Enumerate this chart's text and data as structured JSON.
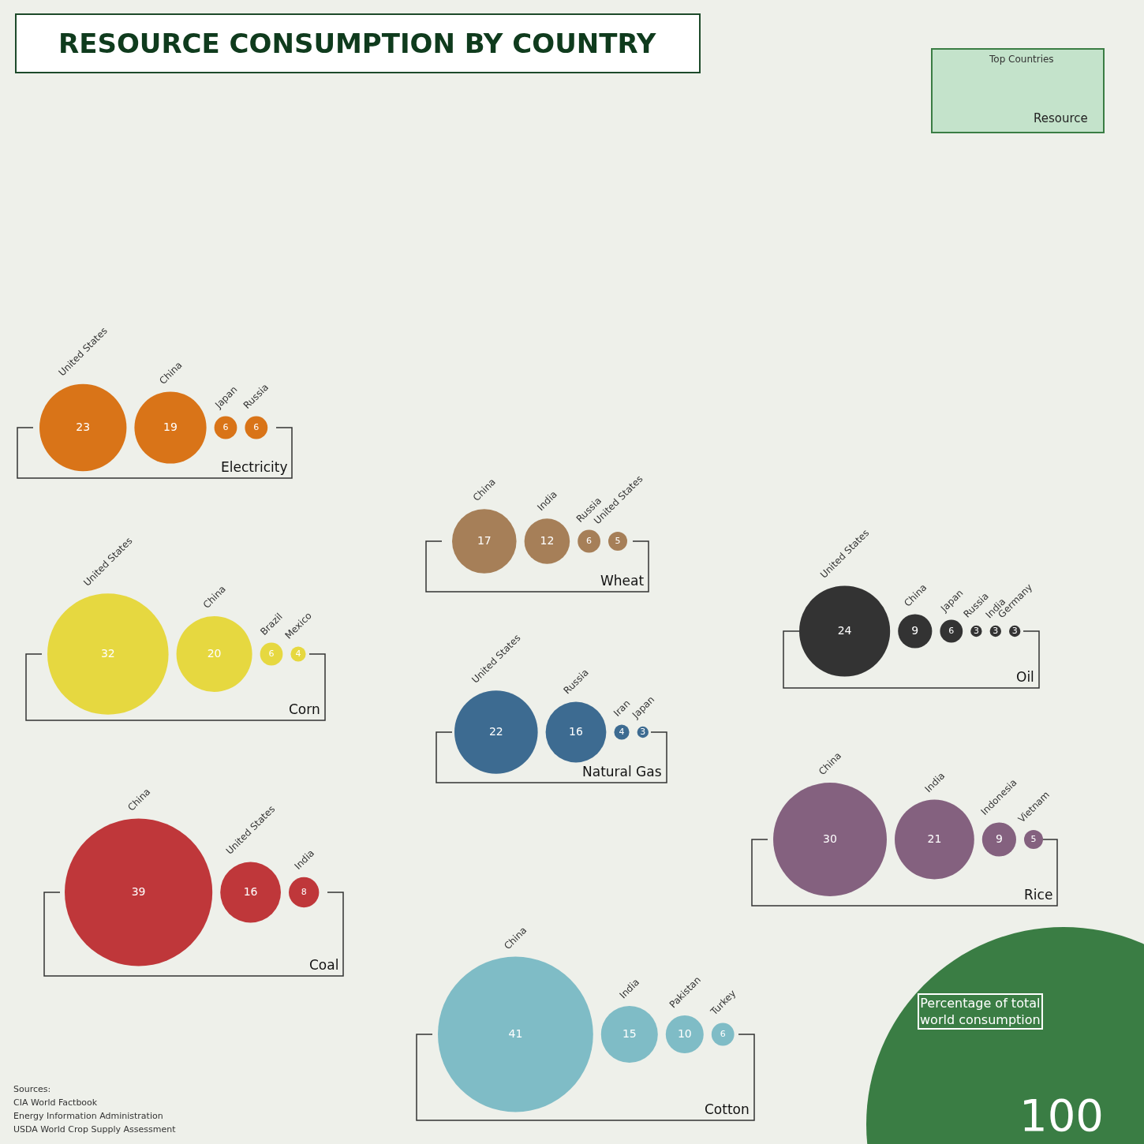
{
  "chart_data": [
    {
      "type": "other",
      "title": "RESOURCE CONSUMPTION BY COUNTRY",
      "annotations": [
        "Top Countries",
        "Resource",
        "Percentage of total world consumption",
        "100",
        "Sources:",
        "CIA World Factbook",
        "Energy Information Administration",
        "USDA World Crop Supply Assessment"
      ]
    },
    {
      "type": "other",
      "title": "Electricity",
      "categories": [
        "United States",
        "China",
        "Japan",
        "Russia"
      ],
      "values": [
        23,
        19,
        6,
        6
      ],
      "color": "#d97418",
      "data_labels": true
    },
    {
      "type": "other",
      "title": "Wheat",
      "categories": [
        "China",
        "India",
        "Russia",
        "United States"
      ],
      "values": [
        17,
        12,
        6,
        5
      ],
      "color": "#a67f58",
      "data_labels": true
    },
    {
      "type": "other",
      "title": "Oil",
      "categories": [
        "United States",
        "China",
        "Japan",
        "Russia",
        "India",
        "Germany"
      ],
      "values": [
        24,
        9,
        6,
        3,
        3,
        3
      ],
      "color": "#333333",
      "data_labels": true
    },
    {
      "type": "other",
      "title": "Corn",
      "categories": [
        "United States",
        "China",
        "Brazil",
        "Mexico"
      ],
      "values": [
        32,
        20,
        6,
        4
      ],
      "color": "#e6d840",
      "data_labels": true
    },
    {
      "type": "other",
      "title": "Natural Gas",
      "categories": [
        "United States",
        "Russia",
        "Iran",
        "Japan"
      ],
      "values": [
        22,
        16,
        4,
        3
      ],
      "color": "#3d6b91",
      "data_labels": true
    },
    {
      "type": "other",
      "title": "Rice",
      "categories": [
        "China",
        "India",
        "Indonesia",
        "Vietnam"
      ],
      "values": [
        30,
        21,
        9,
        5
      ],
      "color": "#84617f",
      "data_labels": true
    },
    {
      "type": "other",
      "title": "Coal",
      "categories": [
        "China",
        "United States",
        "India"
      ],
      "values": [
        39,
        16,
        8
      ],
      "color": "#bf373a",
      "data_labels": true
    },
    {
      "type": "other",
      "title": "Cotton",
      "categories": [
        "China",
        "India",
        "Pakistan",
        "Turkey"
      ],
      "values": [
        41,
        15,
        10,
        6
      ],
      "color": "#7fbcc6",
      "data_labels": true
    }
  ]
}
